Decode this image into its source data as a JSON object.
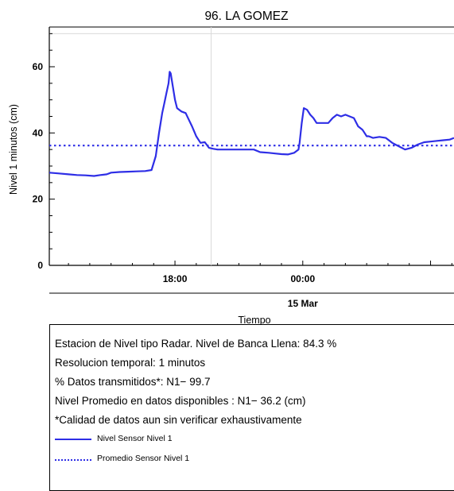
{
  "chart_data": {
    "type": "line",
    "title": "96. LA GOMEZ",
    "xlabel": "Tiempo",
    "ylabel": "Nivel 1 minutos (cm)",
    "x_unit": "hours relative to 00:00, 15 Mar",
    "xlim": [
      -11.9,
      7.1
    ],
    "ylim": [
      0,
      72
    ],
    "y_ticks": [
      0,
      20,
      40,
      60
    ],
    "x_tick_labels": [
      {
        "x": -6,
        "label": "18:00"
      },
      {
        "x": 0,
        "label": "00:00"
      }
    ],
    "date_label": {
      "x": 0,
      "label": "15 Mar"
    },
    "reference_lines": {
      "y": 70,
      "x": -4.3
    },
    "grid": false,
    "series": [
      {
        "name": "Nivel Sensor Nivel 1",
        "style": "solid",
        "color": "#2e2ee6",
        "x": [
          -11.9,
          -11.5,
          -11.0,
          -10.6,
          -10.2,
          -9.8,
          -9.5,
          -9.2,
          -9.0,
          -8.6,
          -8.2,
          -7.8,
          -7.4,
          -7.1,
          -6.9,
          -6.75,
          -6.6,
          -6.5,
          -6.4,
          -6.3,
          -6.25,
          -6.2,
          -6.1,
          -6.0,
          -5.9,
          -5.7,
          -5.5,
          -5.35,
          -5.2,
          -5.1,
          -5.0,
          -4.9,
          -4.8,
          -4.6,
          -4.4,
          -4.2,
          -4.0,
          -3.7,
          -3.4,
          -3.0,
          -2.6,
          -2.3,
          -2.0,
          -1.6,
          -1.3,
          -1.0,
          -0.7,
          -0.4,
          -0.2,
          -0.15,
          -0.05,
          0.05,
          0.2,
          0.35,
          0.5,
          0.65,
          0.8,
          1.0,
          1.2,
          1.4,
          1.6,
          1.8,
          2.0,
          2.2,
          2.4,
          2.6,
          2.8,
          2.9,
          3.0,
          3.1,
          3.3,
          3.6,
          3.9,
          4.2,
          4.5,
          4.8,
          5.1,
          5.4,
          5.7,
          6.0,
          6.3,
          6.6,
          6.9,
          7.1
        ],
        "y": [
          28,
          27.8,
          27.5,
          27.3,
          27.2,
          27.0,
          27.3,
          27.5,
          28,
          28.2,
          28.3,
          28.4,
          28.5,
          28.8,
          33,
          40,
          46,
          49,
          52,
          55,
          58.5,
          58,
          54,
          50,
          47.5,
          46.5,
          46,
          44,
          42,
          40.5,
          39,
          38,
          37,
          37.2,
          35.5,
          35.2,
          35,
          35,
          35,
          35,
          35,
          35,
          34.2,
          34,
          33.8,
          33.6,
          33.5,
          34,
          35,
          37,
          43,
          47.5,
          47,
          45.5,
          44.5,
          43,
          43,
          43,
          43,
          44.5,
          45.5,
          45,
          45.5,
          45,
          44.5,
          42,
          41,
          40,
          39,
          39,
          38.5,
          38.8,
          38.5,
          37,
          36,
          35,
          35.5,
          36.5,
          37.2,
          37.4,
          37.6,
          37.8,
          38,
          38.5
        ]
      },
      {
        "name": "Promedio Sensor Nivel 1",
        "style": "dotted",
        "color": "#2e2ee6",
        "constant": 36.2
      }
    ]
  },
  "info": {
    "line1": "Estacion de Nivel tipo Radar. Nivel de Banca Llena: 84.3 %",
    "line2": "Resolucion temporal: 1 minutos",
    "line3": "% Datos transmitidos*: N1− 99.7",
    "line4": "Nivel Promedio en datos disponibles : N1− 36.2 (cm)",
    "line5": "*Calidad de datos aun sin verificar exhaustivamente"
  },
  "legend": [
    {
      "label": "Nivel Sensor Nivel 1",
      "style": "solid",
      "color": "#2e2ee6"
    },
    {
      "label": "Promedio Sensor Nivel 1",
      "style": "dotted",
      "color": "#2e2ee6"
    }
  ]
}
